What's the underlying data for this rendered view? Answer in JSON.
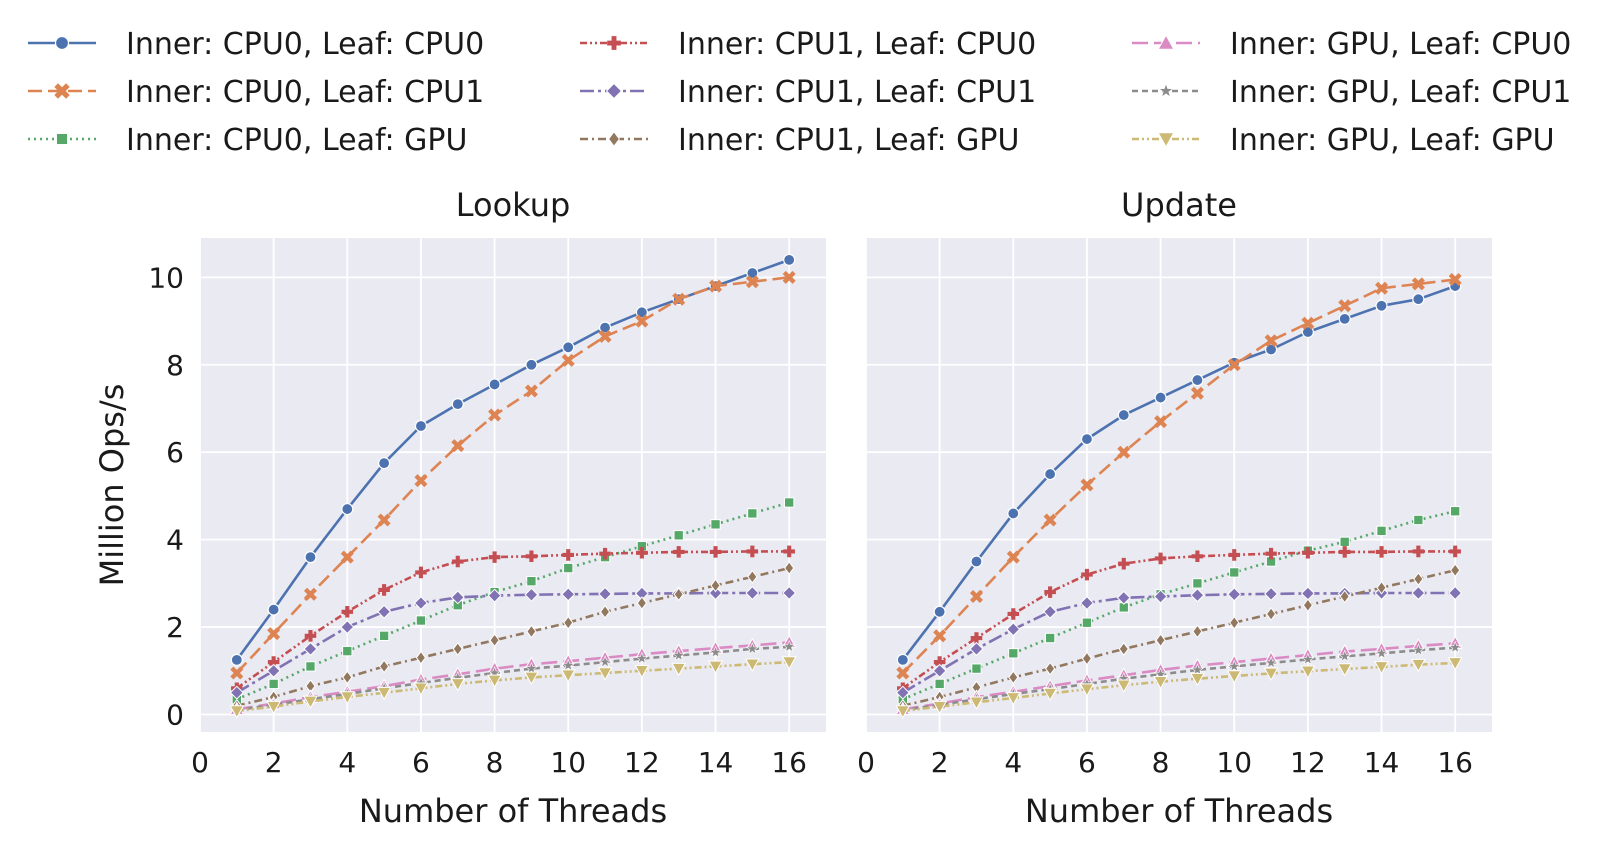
{
  "chart_data": {
    "type": "line",
    "legend": {
      "placement": "top",
      "entries": [
        {
          "label": "Inner: CPU0, Leaf: CPU0",
          "color": "#4c72b0",
          "marker": "circle",
          "dash": "solid"
        },
        {
          "label": "Inner: CPU0, Leaf: CPU1",
          "color": "#dd8452",
          "marker": "x",
          "dash": "dashed"
        },
        {
          "label": "Inner: CPU0, Leaf: GPU",
          "color": "#55a868",
          "marker": "square",
          "dash": "dotted"
        },
        {
          "label": "Inner: CPU1, Leaf: CPU0",
          "color": "#c44e52",
          "marker": "plus",
          "dash": "dash-dot-dot"
        },
        {
          "label": "Inner: CPU1, Leaf: CPU1",
          "color": "#8172b3",
          "marker": "diamond",
          "dash": "long-dash-dot"
        },
        {
          "label": "Inner: CPU1, Leaf: GPU",
          "color": "#937860",
          "marker": "thin-diamond",
          "dash": "dash-dot"
        },
        {
          "label": "Inner: GPU, Leaf: CPU0",
          "color": "#da8bc3",
          "marker": "triangle-up",
          "dash": "long-dash"
        },
        {
          "label": "Inner: GPU, Leaf: CPU1",
          "color": "#8c8c8c",
          "marker": "star",
          "dash": "short-dash"
        },
        {
          "label": "Inner: GPU, Leaf: GPU",
          "color": "#ccb974",
          "marker": "triangle-down",
          "dash": "dash-dot-dot"
        }
      ]
    },
    "grid": true,
    "x": [
      1,
      2,
      3,
      4,
      5,
      6,
      7,
      8,
      9,
      10,
      11,
      12,
      13,
      14,
      15,
      16
    ],
    "xlim": [
      0,
      17
    ],
    "ylim": [
      -0.4,
      10.9
    ],
    "xticks": [
      "0",
      "2",
      "4",
      "6",
      "8",
      "10",
      "12",
      "14",
      "16"
    ],
    "yticks": [
      "0",
      "2",
      "4",
      "6",
      "8",
      "10"
    ],
    "ylabel": "Million Ops/s",
    "panels": [
      {
        "title": "Lookup",
        "xlabel": "Number of Threads",
        "series": [
          {
            "values": [
              1.25,
              2.4,
              3.6,
              4.7,
              5.75,
              6.6,
              7.1,
              7.55,
              8.0,
              8.4,
              8.85,
              9.2,
              9.5,
              9.8,
              10.1,
              10.4
            ]
          },
          {
            "values": [
              0.95,
              1.85,
              2.75,
              3.6,
              4.45,
              5.35,
              6.15,
              6.85,
              7.4,
              8.1,
              8.65,
              9.0,
              9.5,
              9.8,
              9.9,
              10.0
            ]
          },
          {
            "values": [
              0.35,
              0.7,
              1.1,
              1.45,
              1.8,
              2.15,
              2.5,
              2.8,
              3.05,
              3.35,
              3.6,
              3.85,
              4.1,
              4.35,
              4.6,
              4.85
            ]
          },
          {
            "values": [
              0.6,
              1.2,
              1.8,
              2.35,
              2.85,
              3.25,
              3.5,
              3.6,
              3.62,
              3.65,
              3.68,
              3.7,
              3.72,
              3.72,
              3.73,
              3.73
            ]
          },
          {
            "values": [
              0.5,
              1.0,
              1.5,
              2.0,
              2.35,
              2.55,
              2.68,
              2.72,
              2.74,
              2.75,
              2.76,
              2.77,
              2.77,
              2.78,
              2.78,
              2.78
            ]
          },
          {
            "values": [
              0.2,
              0.4,
              0.65,
              0.85,
              1.1,
              1.3,
              1.5,
              1.7,
              1.9,
              2.1,
              2.35,
              2.55,
              2.75,
              2.95,
              3.15,
              3.35
            ]
          },
          {
            "values": [
              0.12,
              0.25,
              0.4,
              0.52,
              0.65,
              0.8,
              0.92,
              1.05,
              1.15,
              1.22,
              1.3,
              1.38,
              1.45,
              1.52,
              1.58,
              1.65
            ]
          },
          {
            "values": [
              0.1,
              0.22,
              0.35,
              0.47,
              0.6,
              0.72,
              0.84,
              0.95,
              1.05,
              1.12,
              1.2,
              1.28,
              1.35,
              1.42,
              1.5,
              1.55
            ]
          },
          {
            "values": [
              0.08,
              0.18,
              0.3,
              0.4,
              0.5,
              0.6,
              0.7,
              0.78,
              0.85,
              0.9,
              0.95,
              1.0,
              1.05,
              1.1,
              1.15,
              1.2
            ]
          }
        ]
      },
      {
        "title": "Update",
        "xlabel": "Number of Threads",
        "series": [
          {
            "values": [
              1.25,
              2.35,
              3.5,
              4.6,
              5.5,
              6.3,
              6.85,
              7.25,
              7.65,
              8.05,
              8.35,
              8.75,
              9.05,
              9.35,
              9.5,
              9.8
            ]
          },
          {
            "values": [
              0.95,
              1.8,
              2.7,
              3.6,
              4.45,
              5.25,
              6.0,
              6.7,
              7.35,
              8.0,
              8.55,
              8.95,
              9.35,
              9.75,
              9.85,
              9.95
            ]
          },
          {
            "values": [
              0.35,
              0.7,
              1.05,
              1.4,
              1.75,
              2.1,
              2.45,
              2.75,
              3.0,
              3.25,
              3.5,
              3.75,
              3.95,
              4.2,
              4.45,
              4.65
            ]
          },
          {
            "values": [
              0.6,
              1.2,
              1.75,
              2.3,
              2.8,
              3.2,
              3.45,
              3.57,
              3.62,
              3.65,
              3.68,
              3.7,
              3.72,
              3.72,
              3.73,
              3.73
            ]
          },
          {
            "values": [
              0.5,
              1.0,
              1.5,
              1.95,
              2.35,
              2.55,
              2.67,
              2.7,
              2.73,
              2.75,
              2.76,
              2.77,
              2.77,
              2.78,
              2.78,
              2.78
            ]
          },
          {
            "values": [
              0.2,
              0.4,
              0.62,
              0.85,
              1.05,
              1.28,
              1.5,
              1.7,
              1.9,
              2.1,
              2.3,
              2.5,
              2.7,
              2.9,
              3.1,
              3.3
            ]
          },
          {
            "values": [
              0.12,
              0.25,
              0.4,
              0.52,
              0.65,
              0.78,
              0.9,
              1.02,
              1.12,
              1.2,
              1.28,
              1.36,
              1.44,
              1.5,
              1.57,
              1.63
            ]
          },
          {
            "values": [
              0.1,
              0.22,
              0.35,
              0.47,
              0.58,
              0.7,
              0.82,
              0.92,
              1.02,
              1.1,
              1.18,
              1.26,
              1.33,
              1.4,
              1.47,
              1.53
            ]
          },
          {
            "values": [
              0.08,
              0.18,
              0.28,
              0.38,
              0.48,
              0.58,
              0.67,
              0.75,
              0.82,
              0.88,
              0.94,
              0.99,
              1.04,
              1.09,
              1.14,
              1.18
            ]
          }
        ]
      }
    ]
  }
}
